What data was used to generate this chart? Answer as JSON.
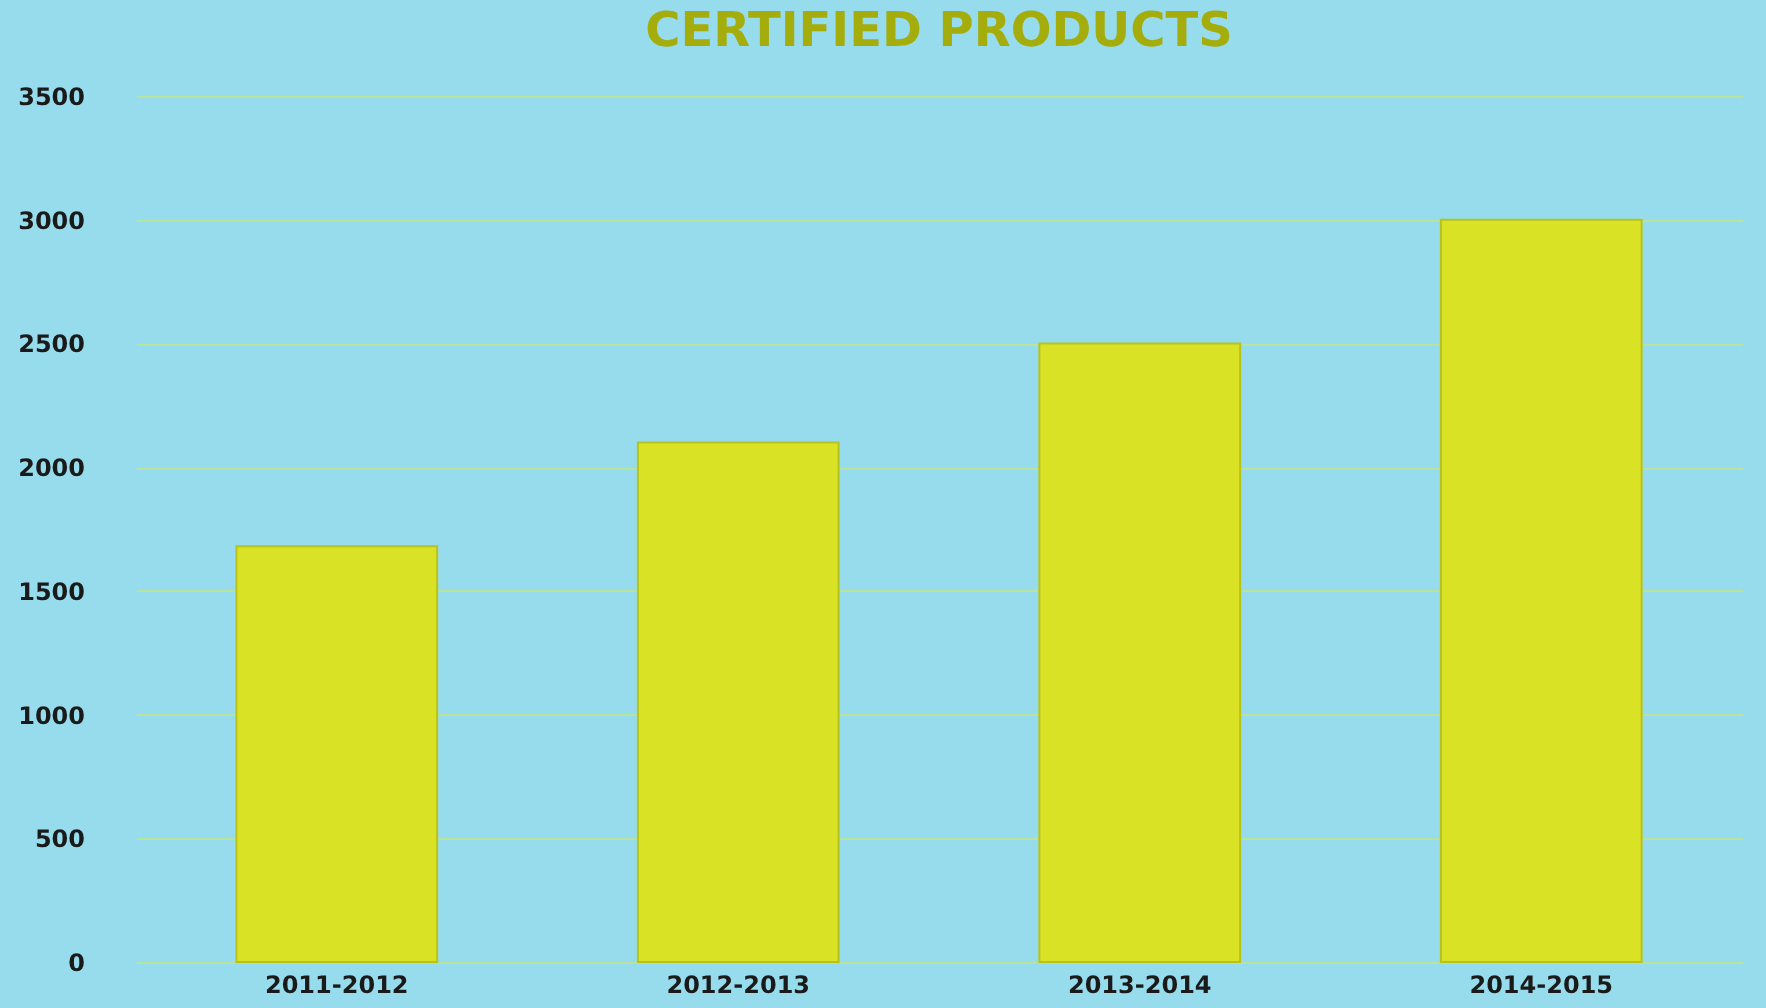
{
  "chart_data": {
    "type": "bar",
    "title": "CERTIFIED PRODUCTS",
    "categories": [
      "2011-2012",
      "2012-2013",
      "2013-2014",
      "2014-2015"
    ],
    "values": [
      1680,
      2100,
      2500,
      3000
    ],
    "color": "#d9e225",
    "ylim": [
      0,
      3500
    ],
    "yticks": [
      0,
      500,
      1000,
      1500,
      2000,
      2500,
      3000,
      3500
    ],
    "grid": "y"
  }
}
